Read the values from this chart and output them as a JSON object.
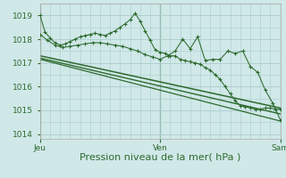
{
  "bg_color": "#d0e8e8",
  "grid_color": "#aacccc",
  "line_color": "#2d6a2d",
  "marker_color": "#2d6a2d",
  "xlabel": "Pression niveau de la mer( hPa )",
  "xlabel_fontsize": 8,
  "tick_fontsize": 6.5,
  "ylim": [
    1013.8,
    1019.5
  ],
  "yticks": [
    1014,
    1015,
    1016,
    1017,
    1018,
    1019
  ],
  "xlim": [
    0,
    96
  ],
  "day_positions": [
    0,
    48,
    96
  ],
  "day_labels": [
    "Jeu",
    "Ven",
    "Sam"
  ],
  "series": [
    {
      "x": [
        0,
        2,
        4,
        6,
        8,
        10,
        12,
        14,
        16,
        18,
        20,
        22,
        24,
        26,
        28,
        30,
        32,
        34,
        36,
        38,
        40,
        42,
        44,
        46,
        48,
        50,
        52,
        54,
        56,
        58,
        60,
        62,
        64,
        66,
        68,
        70,
        72,
        74,
        76,
        78,
        80,
        82,
        84,
        86,
        88,
        90,
        92,
        94,
        96
      ],
      "y": [
        1019.0,
        1018.3,
        1018.05,
        1017.85,
        1017.75,
        1017.8,
        1017.9,
        1018.0,
        1018.1,
        1018.15,
        1018.2,
        1018.25,
        1018.2,
        1018.15,
        1018.25,
        1018.35,
        1018.5,
        1018.65,
        1018.82,
        1019.1,
        1018.75,
        1018.35,
        1017.95,
        1017.55,
        1017.45,
        1017.4,
        1017.3,
        1017.3,
        1017.15,
        1017.1,
        1017.05,
        1017.0,
        1016.95,
        1016.8,
        1016.7,
        1016.5,
        1016.3,
        1016.0,
        1015.7,
        1015.4,
        1015.2,
        1015.15,
        1015.1,
        1015.05,
        1015.05,
        1015.1,
        1015.1,
        1015.05,
        1015.05
      ],
      "has_markers": true
    },
    {
      "x": [
        0,
        3,
        6,
        9,
        12,
        15,
        18,
        21,
        24,
        27,
        30,
        33,
        36,
        39,
        42,
        45,
        48,
        51,
        54,
        57,
        60,
        63,
        66,
        69,
        72,
        75,
        78,
        81,
        84,
        87,
        90,
        93,
        96
      ],
      "y": [
        1018.2,
        1017.95,
        1017.75,
        1017.65,
        1017.7,
        1017.75,
        1017.8,
        1017.85,
        1017.85,
        1017.8,
        1017.75,
        1017.7,
        1017.6,
        1017.5,
        1017.35,
        1017.25,
        1017.15,
        1017.3,
        1017.5,
        1018.0,
        1017.6,
        1018.1,
        1017.1,
        1017.15,
        1017.15,
        1017.5,
        1017.4,
        1017.5,
        1016.85,
        1016.6,
        1015.85,
        1015.3,
        1014.6
      ],
      "has_markers": true
    },
    {
      "x": [
        0,
        96
      ],
      "y": [
        1017.3,
        1015.1
      ],
      "has_markers": false,
      "linewidth": 1.1
    },
    {
      "x": [
        0,
        96
      ],
      "y": [
        1017.2,
        1014.85
      ],
      "has_markers": false,
      "linewidth": 1.0
    },
    {
      "x": [
        0,
        96
      ],
      "y": [
        1017.15,
        1014.55
      ],
      "has_markers": false,
      "linewidth": 0.9
    }
  ]
}
